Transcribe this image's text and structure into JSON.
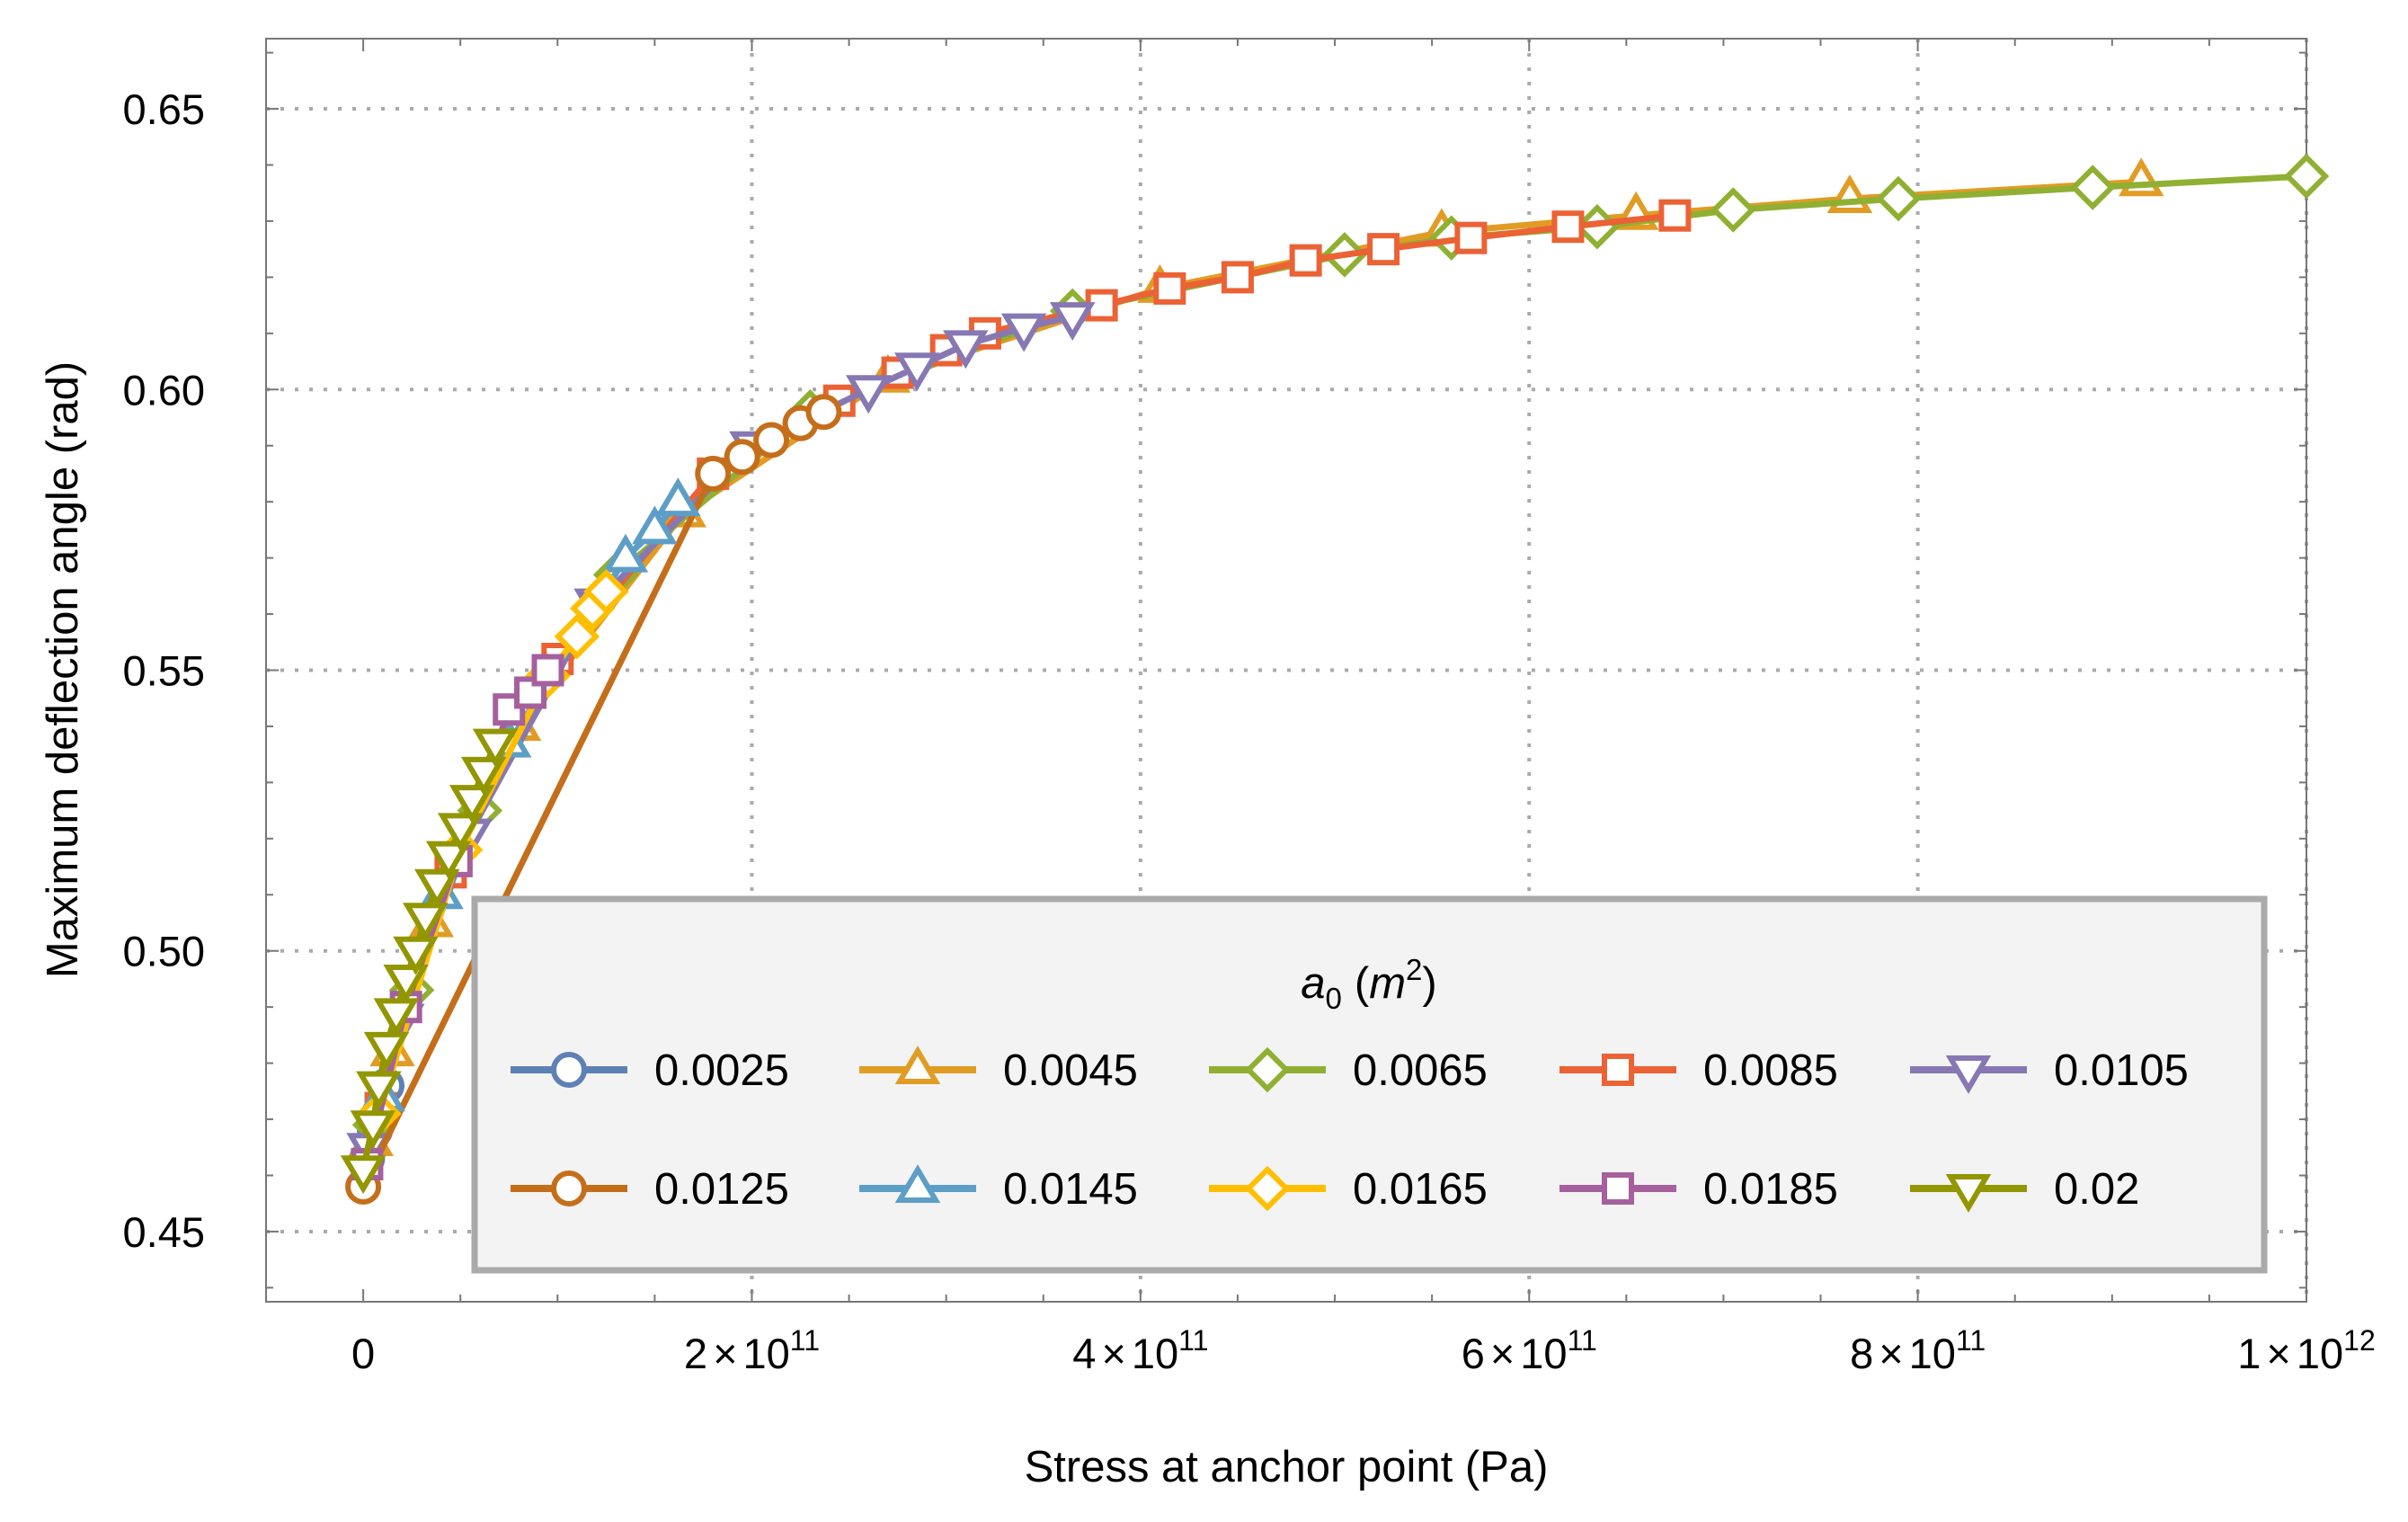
{
  "chart_data": {
    "type": "line",
    "title": "",
    "xlabel": "Stress at anchor point (Pa)",
    "ylabel": "Maximum deflection angle (rad)",
    "xlim": [
      -50000000000,
      1000000000000
    ],
    "ylim": [
      0.4375,
      0.6625
    ],
    "x_ticks": [
      {
        "value": 0,
        "label": "0"
      },
      {
        "value": 200000000000,
        "mantissa": "2",
        "times": "×",
        "base": "10",
        "exp": "11"
      },
      {
        "value": 400000000000,
        "mantissa": "4",
        "times": "×",
        "base": "10",
        "exp": "11"
      },
      {
        "value": 600000000000,
        "mantissa": "6",
        "times": "×",
        "base": "10",
        "exp": "11"
      },
      {
        "value": 800000000000,
        "mantissa": "8",
        "times": "×",
        "base": "10",
        "exp": "11"
      },
      {
        "value": 1000000000000,
        "mantissa": "1",
        "times": "×",
        "base": "10",
        "exp": "12"
      }
    ],
    "y_ticks": [
      {
        "value": 0.45,
        "label": "0.45"
      },
      {
        "value": 0.5,
        "label": "0.50"
      },
      {
        "value": 0.55,
        "label": "0.55"
      },
      {
        "value": 0.6,
        "label": "0.60"
      },
      {
        "value": 0.65,
        "label": "0.65"
      }
    ],
    "grid": true,
    "legend": {
      "placement": "bottom-right",
      "title_symbol": "a",
      "title_subscript": "0",
      "title_unit_base": "m",
      "title_unit_exp": "2",
      "title_open": "(",
      "title_close": ")"
    },
    "series": [
      {
        "name": "0.0025",
        "color": "#5E81B5",
        "marker": "circle",
        "points": [
          [
            2000000000,
            0.463
          ],
          [
            6000000000,
            0.468
          ],
          [
            12000000000,
            0.476
          ]
        ]
      },
      {
        "name": "0.0045",
        "color": "#E19C24",
        "marker": "triangle-up",
        "points": [
          [
            4000000000,
            0.466
          ],
          [
            15000000000,
            0.482
          ],
          [
            35000000000,
            0.505
          ],
          [
            80000000000,
            0.54
          ],
          [
            165000000000,
            0.578
          ],
          [
            270000000000,
            0.602
          ],
          [
            410000000000,
            0.618
          ],
          [
            555000000000,
            0.628
          ],
          [
            655000000000,
            0.631
          ],
          [
            765000000000,
            0.634
          ],
          [
            915000000000,
            0.637
          ]
        ]
      },
      {
        "name": "0.0065",
        "color": "#8FB032",
        "marker": "diamond",
        "points": [
          [
            6000000000,
            0.469
          ],
          [
            25000000000,
            0.493
          ],
          [
            60000000000,
            0.525
          ],
          [
            130000000000,
            0.567
          ],
          [
            230000000000,
            0.596
          ],
          [
            365000000000,
            0.614
          ],
          [
            505000000000,
            0.624
          ],
          [
            560000000000,
            0.627
          ],
          [
            635000000000,
            0.629
          ],
          [
            705000000000,
            0.632
          ],
          [
            790000000000,
            0.634
          ],
          [
            890000000000,
            0.636
          ],
          [
            1000000000000,
            0.638
          ]
        ]
      },
      {
        "name": "0.0085",
        "color": "#EB6235",
        "marker": "square",
        "points": [
          [
            9000000000,
            0.472
          ],
          [
            45000000000,
            0.514
          ],
          [
            100000000000,
            0.552
          ],
          [
            180000000000,
            0.585
          ],
          [
            245000000000,
            0.598
          ],
          [
            275000000000,
            0.603
          ],
          [
            300000000000,
            0.607
          ],
          [
            320000000000,
            0.61
          ],
          [
            380000000000,
            0.615
          ],
          [
            415000000000,
            0.618
          ],
          [
            450000000000,
            0.62
          ],
          [
            485000000000,
            0.623
          ],
          [
            525000000000,
            0.625
          ],
          [
            570000000000,
            0.627
          ],
          [
            620000000000,
            0.629
          ],
          [
            675000000000,
            0.631
          ]
        ]
      },
      {
        "name": "0.0105",
        "color": "#8778B3",
        "marker": "triangle-down",
        "points": [
          [
            3000000000,
            0.465
          ],
          [
            20000000000,
            0.488
          ],
          [
            55000000000,
            0.521
          ],
          [
            120000000000,
            0.562
          ],
          [
            200000000000,
            0.59
          ],
          [
            260000000000,
            0.6
          ],
          [
            285000000000,
            0.604
          ],
          [
            310000000000,
            0.608
          ],
          [
            340000000000,
            0.611
          ],
          [
            365000000000,
            0.613
          ]
        ]
      },
      {
        "name": "0.0125",
        "color": "#C56E1A",
        "marker": "circle",
        "points": [
          [
            0,
            0.458
          ],
          [
            180000000000,
            0.585
          ],
          [
            195000000000,
            0.588
          ],
          [
            210000000000,
            0.591
          ],
          [
            225000000000,
            0.594
          ],
          [
            237000000000,
            0.596
          ]
        ]
      },
      {
        "name": "0.0145",
        "color": "#5D9EC7",
        "marker": "triangle-up",
        "points": [
          [
            10000000000,
            0.474
          ],
          [
            40000000000,
            0.51
          ],
          [
            75000000000,
            0.537
          ],
          [
            135000000000,
            0.57
          ],
          [
            150000000000,
            0.575
          ],
          [
            162000000000,
            0.58
          ]
        ]
      },
      {
        "name": "0.0165",
        "color": "#FFBF00",
        "marker": "diamond",
        "points": [
          [
            8000000000,
            0.471
          ],
          [
            50000000000,
            0.518
          ],
          [
            95000000000,
            0.549
          ],
          [
            110000000000,
            0.556
          ],
          [
            118000000000,
            0.561
          ],
          [
            125000000000,
            0.564
          ]
        ]
      },
      {
        "name": "0.0185",
        "color": "#A5609D",
        "marker": "square",
        "points": [
          [
            2000000000,
            0.462
          ],
          [
            22000000000,
            0.49
          ],
          [
            48000000000,
            0.516
          ],
          [
            75000000000,
            0.543
          ],
          [
            86000000000,
            0.546
          ],
          [
            95000000000,
            0.55
          ]
        ]
      },
      {
        "name": "0.02",
        "color": "#929600",
        "marker": "triangle-down",
        "points": [
          [
            0,
            0.461
          ],
          [
            5000000000,
            0.469
          ],
          [
            8000000000,
            0.476
          ],
          [
            12000000000,
            0.483
          ],
          [
            17000000000,
            0.489
          ],
          [
            22000000000,
            0.495
          ],
          [
            27000000000,
            0.5
          ],
          [
            32000000000,
            0.506
          ],
          [
            38000000000,
            0.512
          ],
          [
            44000000000,
            0.517
          ],
          [
            50000000000,
            0.522
          ],
          [
            56000000000,
            0.527
          ],
          [
            62000000000,
            0.532
          ],
          [
            68000000000,
            0.537
          ]
        ]
      }
    ]
  }
}
